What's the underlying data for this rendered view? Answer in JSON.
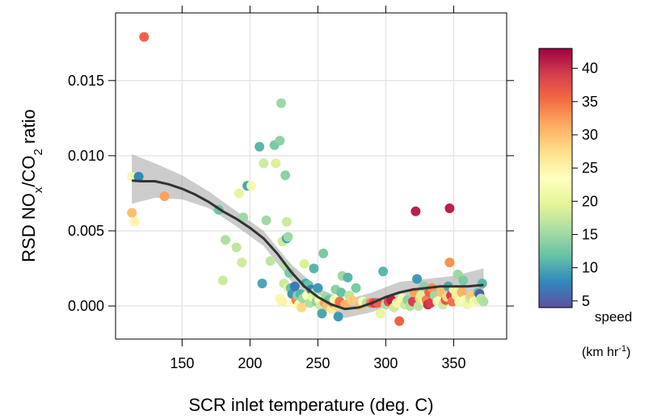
{
  "chart_data": {
    "type": "scatter",
    "xlabel": "SCR inlet temperature (deg. C)",
    "ylabel": {
      "pre": "RSD NO",
      "sub1": "x",
      "mid": "/CO",
      "sub2": "2",
      "post": " ratio"
    },
    "xlim": [
      101,
      389
    ],
    "ylim": [
      -0.0022,
      0.0195
    ],
    "xticks": [
      "150",
      "200",
      "250",
      "300",
      "350"
    ],
    "yticks": [
      "0.000",
      "0.005",
      "0.010",
      "0.015"
    ],
    "grid": true,
    "colorbar": {
      "title_line1": "speed",
      "title_line2": {
        "pre": "(km hr",
        "sup": "-1",
        "post": ")"
      },
      "range": [
        4,
        43
      ],
      "ticks": [
        "5",
        "10",
        "15",
        "20",
        "25",
        "30",
        "35",
        "40"
      ],
      "colors": [
        "#5E4FA2",
        "#3288BD",
        "#66C2A5",
        "#ABDDA4",
        "#E6F598",
        "#FFFFBF",
        "#FEE08B",
        "#FDAE61",
        "#F46D43",
        "#D53E4F",
        "#9E0142"
      ]
    },
    "points": [
      [
        122,
        0.0179,
        36
      ],
      [
        113,
        0.0062,
        30
      ],
      [
        115,
        0.0056,
        25
      ],
      [
        113,
        0.0086,
        22
      ],
      [
        118,
        0.0086,
        8
      ],
      [
        137,
        0.0073,
        32
      ],
      [
        177,
        0.0064,
        12
      ],
      [
        180,
        0.0017,
        18
      ],
      [
        182,
        0.0044,
        16
      ],
      [
        190,
        0.0039,
        17
      ],
      [
        192,
        0.0075,
        20
      ],
      [
        194,
        0.0029,
        18
      ],
      [
        195,
        0.0059,
        15
      ],
      [
        198,
        0.008,
        10
      ],
      [
        201,
        0.008,
        22
      ],
      [
        207,
        0.0106,
        11
      ],
      [
        210,
        0.0095,
        18
      ],
      [
        209,
        0.0015,
        10
      ],
      [
        212,
        0.0057,
        15
      ],
      [
        215,
        0.003,
        17
      ],
      [
        218,
        0.0107,
        13
      ],
      [
        219,
        0.0095,
        19
      ],
      [
        222,
        0.011,
        14
      ],
      [
        223,
        0.0135,
        15
      ],
      [
        224,
        0.0043,
        18
      ],
      [
        226,
        0.0087,
        14
      ],
      [
        227,
        0.0056,
        18
      ],
      [
        227,
        0.0045,
        9
      ],
      [
        228,
        0.0046,
        15
      ],
      [
        222,
        0.0005,
        22
      ],
      [
        224,
        0.0003,
        25
      ],
      [
        225,
        0.0015,
        18
      ],
      [
        226,
        0.0027,
        16
      ],
      [
        228,
        0.0012,
        20
      ],
      [
        229,
        0.0022,
        13
      ],
      [
        230,
        0.0012,
        12
      ],
      [
        231,
        0.0008,
        9
      ],
      [
        232,
        0.0002,
        24
      ],
      [
        233,
        0.0013,
        7
      ],
      [
        234,
        0.0004,
        34
      ],
      [
        235,
        0.0007,
        14
      ],
      [
        236,
        0.0001,
        22
      ],
      [
        237,
        0.0008,
        11
      ],
      [
        238,
        -0.0001,
        28
      ],
      [
        239,
        0.0005,
        15
      ],
      [
        240,
        0.0028,
        19
      ],
      [
        241,
        0.0015,
        10
      ],
      [
        242,
        0.0007,
        24
      ],
      [
        243,
        0.0014,
        12
      ],
      [
        244,
        0.0002,
        16
      ],
      [
        245,
        0.0011,
        8
      ],
      [
        246,
        0.0006,
        20
      ],
      [
        247,
        0.0025,
        11
      ],
      [
        248,
        0.0009,
        17
      ],
      [
        249,
        0.0003,
        14
      ],
      [
        250,
        0.0012,
        9
      ],
      [
        251,
        0.0004,
        22
      ],
      [
        252,
        0.0,
        18
      ],
      [
        253,
        -0.0005,
        10
      ],
      [
        254,
        0.0035,
        13
      ],
      [
        255,
        0.0002,
        32
      ],
      [
        256,
        0.0006,
        15
      ],
      [
        257,
        0.0,
        30
      ],
      [
        258,
        0.0004,
        12
      ],
      [
        260,
        -0.0002,
        26
      ],
      [
        261,
        0.0002,
        33
      ],
      [
        262,
        0.0004,
        22
      ],
      [
        263,
        0.0011,
        14
      ],
      [
        264,
        0.0,
        28
      ],
      [
        265,
        -0.0007,
        9
      ],
      [
        266,
        0.0003,
        35
      ],
      [
        267,
        0.0009,
        12
      ],
      [
        268,
        0.002,
        15
      ],
      [
        270,
        0.0001,
        31
      ],
      [
        272,
        0.0019,
        11
      ],
      [
        273,
        0.0007,
        17
      ],
      [
        275,
        0.0004,
        29
      ],
      [
        278,
        0.0012,
        13
      ],
      [
        281,
        0.0,
        30
      ],
      [
        283,
        0.0003,
        22
      ],
      [
        286,
        0.0002,
        16
      ],
      [
        289,
        0.0002,
        34
      ],
      [
        291,
        0.0002,
        38
      ],
      [
        293,
        0.0002,
        40
      ],
      [
        294,
        0.0002,
        36
      ],
      [
        296,
        -0.0005,
        20
      ],
      [
        298,
        0.0023,
        11
      ],
      [
        300,
        0.0001,
        16
      ],
      [
        302,
        0.0003,
        38
      ],
      [
        304,
        0.0004,
        41
      ],
      [
        306,
        -0.0001,
        18
      ],
      [
        308,
        0.0002,
        25
      ],
      [
        310,
        -0.001,
        36
      ],
      [
        312,
        0.0005,
        22
      ],
      [
        314,
        0.0001,
        18
      ],
      [
        316,
        0.0004,
        14
      ],
      [
        318,
        0.0,
        16
      ],
      [
        320,
        0.0003,
        39
      ],
      [
        321,
        0.0009,
        32
      ],
      [
        322,
        0.0063,
        41
      ],
      [
        323,
        0.0018,
        9
      ],
      [
        324,
        0.0,
        17
      ],
      [
        325,
        0.0005,
        28
      ],
      [
        326,
        0.0007,
        19
      ],
      [
        328,
        0.0013,
        14
      ],
      [
        329,
        0.0003,
        22
      ],
      [
        330,
        0.0004,
        34
      ],
      [
        331,
        0.0001,
        40
      ],
      [
        332,
        0.0009,
        36
      ],
      [
        333,
        0.0002,
        39
      ],
      [
        334,
        0.0012,
        33
      ],
      [
        336,
        0.0007,
        15
      ],
      [
        338,
        0.0003,
        21
      ],
      [
        340,
        0.0004,
        24
      ],
      [
        341,
        0.0009,
        30
      ],
      [
        342,
        0.0001,
        18
      ],
      [
        344,
        0.0004,
        37
      ],
      [
        345,
        0.0006,
        28
      ],
      [
        346,
        0.0013,
        10
      ],
      [
        347,
        0.0065,
        41
      ],
      [
        347,
        0.0029,
        33
      ],
      [
        348,
        0.0007,
        39
      ],
      [
        349,
        0.0003,
        35
      ],
      [
        350,
        0.0011,
        20
      ],
      [
        352,
        0.0007,
        26
      ],
      [
        353,
        0.0021,
        15
      ],
      [
        354,
        0.0003,
        22
      ],
      [
        356,
        0.0009,
        31
      ],
      [
        357,
        0.0017,
        13
      ],
      [
        358,
        0.0004,
        24
      ],
      [
        360,
        0.0001,
        21
      ],
      [
        362,
        0.0005,
        18
      ],
      [
        363,
        0.0007,
        29
      ],
      [
        365,
        0.0003,
        23
      ],
      [
        367,
        0.0004,
        20
      ],
      [
        368,
        0.0009,
        12
      ],
      [
        369,
        0.0008,
        5
      ],
      [
        370,
        0.0005,
        17
      ],
      [
        371,
        0.0015,
        11
      ],
      [
        372,
        0.0003,
        16
      ]
    ],
    "smooth_fit": [
      [
        113,
        0.00835
      ],
      [
        120,
        0.0083
      ],
      [
        130,
        0.0083
      ],
      [
        140,
        0.0081
      ],
      [
        150,
        0.0078
      ],
      [
        160,
        0.0074
      ],
      [
        170,
        0.0069
      ],
      [
        180,
        0.0063
      ],
      [
        190,
        0.0058
      ],
      [
        200,
        0.0052
      ],
      [
        210,
        0.0045
      ],
      [
        220,
        0.0035
      ],
      [
        230,
        0.0023
      ],
      [
        240,
        0.0013
      ],
      [
        250,
        0.0006
      ],
      [
        260,
        0.0001
      ],
      [
        270,
        -0.0002
      ],
      [
        280,
        -0.0001
      ],
      [
        290,
        0.0002
      ],
      [
        300,
        0.0006
      ],
      [
        310,
        0.0009
      ],
      [
        320,
        0.0011
      ],
      [
        330,
        0.0012
      ],
      [
        340,
        0.0013
      ],
      [
        350,
        0.0013
      ],
      [
        360,
        0.0013
      ],
      [
        372,
        0.0014
      ]
    ],
    "smooth_band": [
      [
        113,
        0.0068,
        0.0101
      ],
      [
        130,
        0.0072,
        0.0095
      ],
      [
        150,
        0.0071,
        0.0087
      ],
      [
        170,
        0.0065,
        0.0076
      ],
      [
        190,
        0.0053,
        0.0063
      ],
      [
        210,
        0.004,
        0.005
      ],
      [
        230,
        0.0017,
        0.0028
      ],
      [
        250,
        0.0001,
        0.0012
      ],
      [
        270,
        -0.0008,
        0.0004
      ],
      [
        290,
        -0.0004,
        0.0009
      ],
      [
        310,
        0.0003,
        0.0016
      ],
      [
        330,
        0.0007,
        0.0018
      ],
      [
        350,
        0.0006,
        0.002
      ],
      [
        372,
        0.0002,
        0.0025
      ]
    ]
  }
}
